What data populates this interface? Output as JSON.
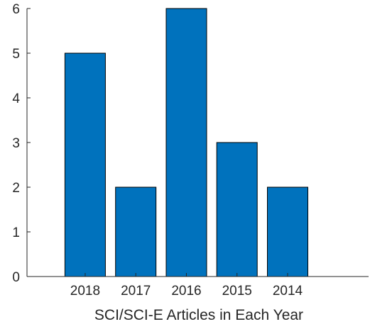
{
  "chart_data": {
    "type": "bar",
    "title": "",
    "xlabel": "SCI/SCI-E Articles in Each Year",
    "ylabel": "",
    "categories": [
      "2018",
      "2017",
      "2016",
      "2015",
      "2014"
    ],
    "values": [
      5,
      2,
      6,
      3,
      2
    ],
    "ylim": [
      0,
      6
    ],
    "yticks": [
      "0",
      "1",
      "2",
      "3",
      "4",
      "5",
      "6"
    ],
    "grid": false,
    "legend": "none",
    "colors": {
      "bar_fill": "#0072BD",
      "bar_edge": "#000000",
      "axis": "#262626",
      "text": "#262626",
      "background": "#ffffff"
    }
  }
}
